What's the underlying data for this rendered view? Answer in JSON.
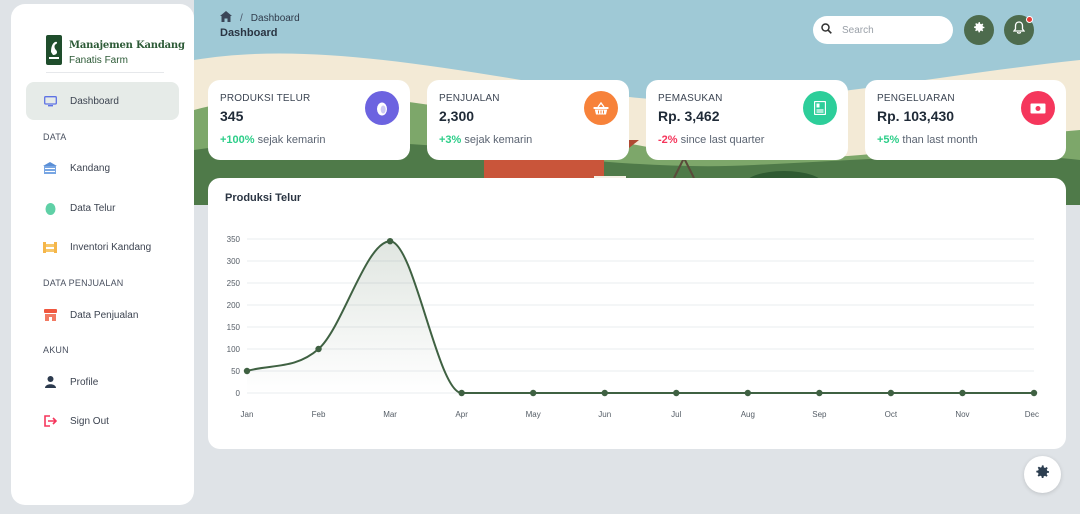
{
  "brand": {
    "title": "Manajemen Kandang",
    "subtitle": "Fanatis Farm"
  },
  "sidebar": {
    "items": [
      {
        "label": "Dashboard",
        "icon": "monitor-icon",
        "active": true
      },
      {
        "label": "Kandang",
        "icon": "barn-icon"
      },
      {
        "label": "Data Telur",
        "icon": "egg-icon"
      },
      {
        "label": "Inventori Kandang",
        "icon": "inventory-icon"
      },
      {
        "label": "Data Penjualan",
        "icon": "store-icon"
      },
      {
        "label": "Profile",
        "icon": "user-icon"
      },
      {
        "label": "Sign Out",
        "icon": "sign-out-icon"
      }
    ],
    "sections": [
      "DATA",
      "DATA PENJUALAN",
      "AKUN"
    ]
  },
  "header": {
    "breadcrumb": "Dashboard",
    "title": "Dashboard",
    "search_placeholder": "Search"
  },
  "cards": [
    {
      "label": "PRODUKSI TELUR",
      "value": "345",
      "change": "+100%",
      "change_text": "sejak kemarin",
      "change_color": "#2dce89",
      "icon": "egg-icon",
      "color": "#6c63e0"
    },
    {
      "label": "PENJUALAN",
      "value": "2,300",
      "change": "+3%",
      "change_text": "sejak kemarin",
      "change_color": "#2dce89",
      "icon": "basket-icon",
      "color": "#f7823a"
    },
    {
      "label": "PEMASUKAN",
      "value": "Rp. 3,462",
      "change": "-2%",
      "change_text": "since last quarter",
      "change_color": "#f5365c",
      "icon": "ledger-icon",
      "color": "#2dce9a"
    },
    {
      "label": "PENGELUARAN",
      "value": "Rp. 103,430",
      "change": "+5%",
      "change_text": "than last month",
      "change_color": "#2dce89",
      "icon": "money-icon",
      "color": "#f5365c"
    }
  ],
  "chart_data": {
    "type": "line",
    "title": "Produksi Telur",
    "categories": [
      "Jan",
      "Feb",
      "Mar",
      "Apr",
      "May",
      "Jun",
      "Jul",
      "Aug",
      "Sep",
      "Oct",
      "Nov",
      "Dec"
    ],
    "series": [
      {
        "values": [
          50,
          100,
          345,
          0,
          0,
          0,
          0,
          0,
          0,
          0,
          0,
          0
        ]
      }
    ],
    "ylim": [
      0,
      350
    ],
    "yticks": [
      0,
      50,
      100,
      150,
      200,
      250,
      300,
      350
    ],
    "grid": true,
    "color": "#3f6142"
  }
}
